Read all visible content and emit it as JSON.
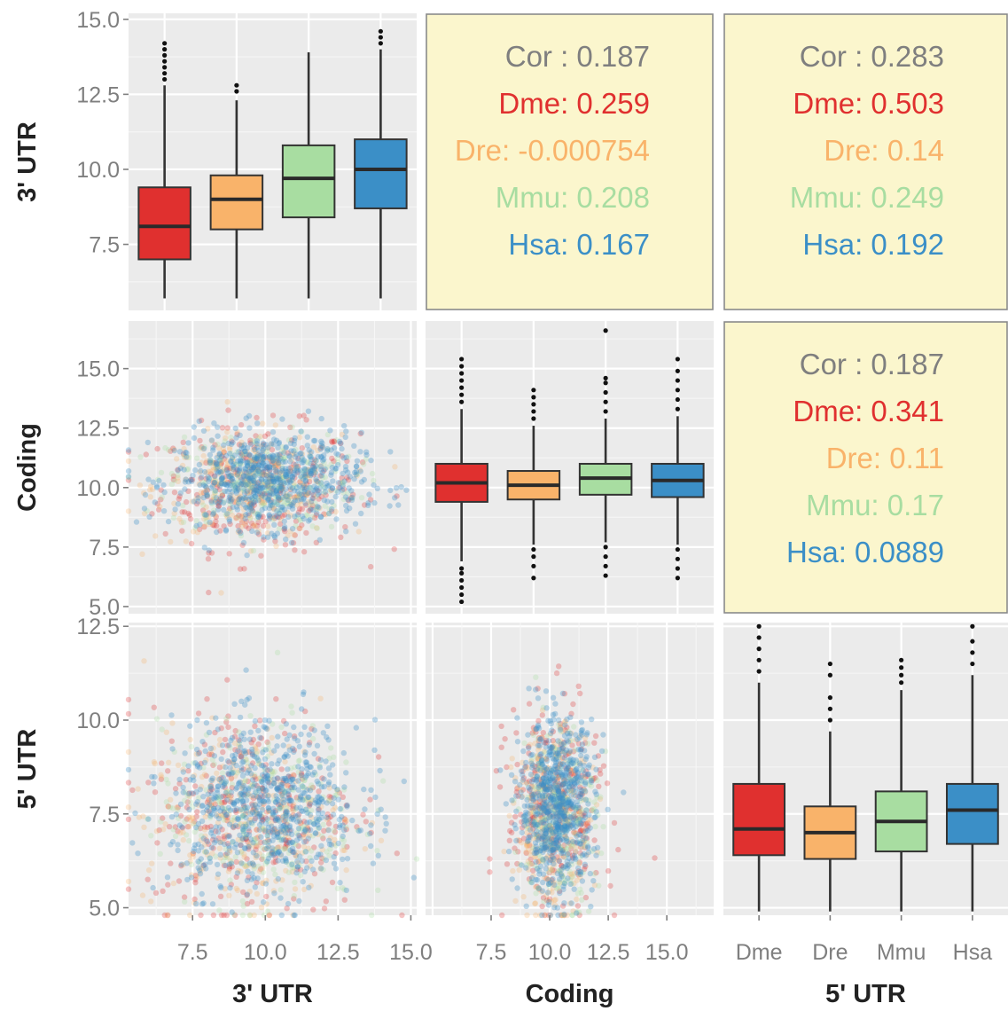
{
  "chart_data": {
    "type": "scatter",
    "variables": [
      "3' UTR",
      "Coding",
      "5' UTR"
    ],
    "groups": [
      "Dme",
      "Dre",
      "Mmu",
      "Hsa"
    ],
    "colors": {
      "Dme": "#e0302f",
      "Dre": "#f9b36a",
      "Mmu": "#a8dda1",
      "Hsa": "#3b8fc7",
      "Cor": "#7f7f7f"
    },
    "panel_background": "#ebebeb",
    "correlation_background": "#fbf6cd",
    "grid": true,
    "ticks": {
      "utr3_y": [
        "15.0",
        "12.5",
        "10.0",
        "7.5"
      ],
      "coding_y": [
        "15.0",
        "12.5",
        "10.0",
        "7.5",
        "5.0"
      ],
      "utr5_y": [
        "12.5",
        "10.0",
        "7.5",
        "5.0"
      ],
      "utr3_x": [
        "7.5",
        "10.0",
        "12.5",
        "15.0"
      ],
      "coding_x": [
        "7.5",
        "10.0",
        "12.5",
        "15.0"
      ],
      "groups_x": [
        "Dme",
        "Dre",
        "Mmu",
        "Hsa"
      ]
    },
    "axis_labels": {
      "row": [
        "3' UTR",
        "Coding",
        "5' UTR"
      ],
      "col": [
        "3' UTR",
        "Coding",
        "5' UTR"
      ]
    },
    "correlations": [
      {
        "pair": [
          "3' UTR",
          "Coding"
        ],
        "lines": [
          {
            "key": "Cor",
            "text": "Cor : 0.187"
          },
          {
            "key": "Dme",
            "text": "Dme: 0.259"
          },
          {
            "key": "Dre",
            "text": "Dre: -0.000754"
          },
          {
            "key": "Mmu",
            "text": "Mmu: 0.208"
          },
          {
            "key": "Hsa",
            "text": "Hsa: 0.167"
          }
        ]
      },
      {
        "pair": [
          "3' UTR",
          "5' UTR"
        ],
        "lines": [
          {
            "key": "Cor",
            "text": "Cor : 0.283"
          },
          {
            "key": "Dme",
            "text": "Dme: 0.503"
          },
          {
            "key": "Dre",
            "text": "Dre: 0.14"
          },
          {
            "key": "Mmu",
            "text": "Mmu: 0.249"
          },
          {
            "key": "Hsa",
            "text": "Hsa: 0.192"
          }
        ]
      },
      {
        "pair": [
          "Coding",
          "5' UTR"
        ],
        "lines": [
          {
            "key": "Cor",
            "text": "Cor : 0.187"
          },
          {
            "key": "Dme",
            "text": "Dme: 0.341"
          },
          {
            "key": "Dre",
            "text": "Dre: 0.11"
          },
          {
            "key": "Mmu",
            "text": "Mmu: 0.17"
          },
          {
            "key": "Hsa",
            "text": "Hsa: 0.0889"
          }
        ]
      }
    ],
    "boxplots": [
      {
        "variable": "3' UTR",
        "ylim": [
          5.3,
          15.2
        ],
        "boxes": [
          {
            "group": "Dme",
            "min": 5.7,
            "q1": 7.0,
            "median": 8.1,
            "q3": 9.4,
            "max": 12.8,
            "outliers": [
              13.0,
              13.2,
              13.4,
              13.6,
              13.8,
              14.0,
              14.2
            ]
          },
          {
            "group": "Dre",
            "min": 5.7,
            "q1": 8.0,
            "median": 9.0,
            "q3": 9.8,
            "max": 12.3,
            "outliers": [
              12.6,
              12.8
            ]
          },
          {
            "group": "Mmu",
            "min": 5.7,
            "q1": 8.4,
            "median": 9.7,
            "q3": 10.8,
            "max": 13.9,
            "outliers": []
          },
          {
            "group": "Hsa",
            "min": 5.7,
            "q1": 8.7,
            "median": 10.0,
            "q3": 11.0,
            "max": 14.0,
            "outliers": [
              14.2,
              14.4,
              14.6
            ]
          }
        ]
      },
      {
        "variable": "Coding",
        "ylim": [
          4.7,
          17.0
        ],
        "boxes": [
          {
            "group": "Dme",
            "min": 6.9,
            "q1": 9.4,
            "median": 10.2,
            "q3": 11.0,
            "max": 13.3,
            "outliers": [
              5.2,
              5.5,
              5.8,
              6.1,
              6.4,
              6.6,
              13.6,
              13.9,
              14.2,
              14.5,
              14.8,
              15.1,
              15.4
            ]
          },
          {
            "group": "Dre",
            "min": 7.6,
            "q1": 9.5,
            "median": 10.1,
            "q3": 10.7,
            "max": 12.6,
            "outliers": [
              6.2,
              6.7,
              7.1,
              7.4,
              12.9,
              13.2,
              13.5,
              13.8,
              14.1
            ]
          },
          {
            "group": "Mmu",
            "min": 7.7,
            "q1": 9.7,
            "median": 10.4,
            "q3": 11.0,
            "max": 12.9,
            "outliers": [
              6.3,
              6.7,
              7.1,
              7.5,
              13.2,
              13.6,
              14.0,
              14.4,
              14.6,
              16.6
            ]
          },
          {
            "group": "Hsa",
            "min": 7.6,
            "q1": 9.6,
            "median": 10.3,
            "q3": 11.0,
            "max": 13.0,
            "outliers": [
              6.2,
              6.6,
              7.0,
              7.4,
              13.3,
              13.7,
              14.1,
              14.5,
              14.9,
              15.4
            ]
          }
        ]
      },
      {
        "variable": "5' UTR",
        "ylim": [
          4.8,
          12.6
        ],
        "boxes": [
          {
            "group": "Dme",
            "min": 4.9,
            "q1": 6.4,
            "median": 7.1,
            "q3": 8.3,
            "max": 11.0,
            "outliers": [
              11.3,
              11.6,
              11.9,
              12.2,
              12.5
            ]
          },
          {
            "group": "Dre",
            "min": 4.9,
            "q1": 6.3,
            "median": 7.0,
            "q3": 7.7,
            "max": 9.7,
            "outliers": [
              10.0,
              10.3,
              10.6,
              11.2,
              11.5
            ]
          },
          {
            "group": "Mmu",
            "min": 4.9,
            "q1": 6.5,
            "median": 7.3,
            "q3": 8.1,
            "max": 10.8,
            "outliers": [
              11.0,
              11.2,
              11.4,
              11.6
            ]
          },
          {
            "group": "Hsa",
            "min": 4.9,
            "q1": 6.7,
            "median": 7.6,
            "q3": 8.3,
            "max": 11.2,
            "outliers": [
              11.5,
              11.8,
              12.1,
              12.5
            ]
          }
        ]
      }
    ],
    "scatters": [
      {
        "x": "3' UTR",
        "y": "Coding",
        "xlim": [
          5.3,
          15.2
        ],
        "ylim": [
          4.7,
          17.0
        ],
        "clusters": {
          "Dme": {
            "cx": 9.8,
            "cy": 10.0,
            "sx": 1.7,
            "sy": 1.3
          },
          "Dre": {
            "cx": 9.4,
            "cy": 10.0,
            "sx": 1.6,
            "sy": 1.1
          },
          "Mmu": {
            "cx": 9.9,
            "cy": 10.2,
            "sx": 1.6,
            "sy": 1.0
          },
          "Hsa": {
            "cx": 10.1,
            "cy": 10.3,
            "sx": 1.6,
            "sy": 1.0
          }
        }
      },
      {
        "x": "3' UTR",
        "y": "5' UTR",
        "xlim": [
          5.3,
          15.2
        ],
        "ylim": [
          4.8,
          12.6
        ],
        "clusters": {
          "Dme": {
            "cx": 9.6,
            "cy": 7.6,
            "sx": 1.8,
            "sy": 1.4
          },
          "Dre": {
            "cx": 9.2,
            "cy": 7.3,
            "sx": 1.7,
            "sy": 1.2
          },
          "Mmu": {
            "cx": 9.8,
            "cy": 7.5,
            "sx": 1.7,
            "sy": 1.2
          },
          "Hsa": {
            "cx": 10.0,
            "cy": 7.7,
            "sx": 1.6,
            "sy": 1.1
          }
        }
      },
      {
        "x": "Coding",
        "y": "5' UTR",
        "xlim": [
          4.7,
          17.0
        ],
        "ylim": [
          4.8,
          12.6
        ],
        "clusters": {
          "Dme": {
            "cx": 10.2,
            "cy": 7.6,
            "sx": 1.0,
            "sy": 1.4
          },
          "Dre": {
            "cx": 10.1,
            "cy": 7.3,
            "sx": 0.8,
            "sy": 1.2
          },
          "Mmu": {
            "cx": 10.4,
            "cy": 7.5,
            "sx": 0.8,
            "sy": 1.2
          },
          "Hsa": {
            "cx": 10.3,
            "cy": 7.7,
            "sx": 0.8,
            "sy": 1.1
          }
        }
      }
    ]
  }
}
